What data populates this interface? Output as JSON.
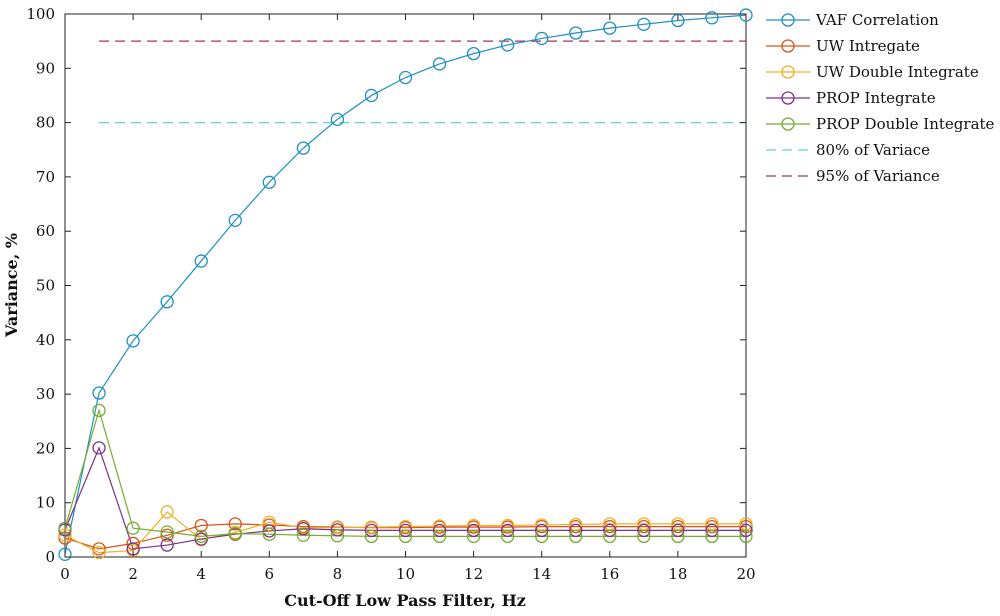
{
  "chart_data": {
    "type": "line",
    "xlabel": "Cut-Off Low Pass Filter, Hz",
    "ylabel": "Variance, %",
    "xlim": [
      0,
      20
    ],
    "ylim": [
      0,
      100
    ],
    "x_ticks": [
      "0",
      "2",
      "4",
      "6",
      "8",
      "10",
      "12",
      "14",
      "16",
      "18",
      "20"
    ],
    "y_ticks": [
      "0",
      "10",
      "20",
      "30",
      "40",
      "50",
      "60",
      "70",
      "80",
      "90",
      "100"
    ],
    "grid": false,
    "legend_position": "outside-right",
    "x": [
      0,
      1,
      2,
      3,
      4,
      5,
      6,
      7,
      8,
      9,
      10,
      11,
      12,
      13,
      14,
      15,
      16,
      17,
      18,
      19,
      20
    ],
    "series": [
      {
        "name": "VAF Correlation",
        "color": "#1f8fc4",
        "marker": "circle",
        "values": [
          0.5,
          30.2,
          39.8,
          47.0,
          54.5,
          62.0,
          69.0,
          75.3,
          80.6,
          85.0,
          88.3,
          90.8,
          92.7,
          94.3,
          95.5,
          96.5,
          97.4,
          98.1,
          98.8,
          99.3,
          99.8
        ]
      },
      {
        "name": "UW Intregate",
        "color": "#d95319",
        "marker": "circle",
        "values": [
          3.5,
          1.5,
          2.5,
          4.0,
          5.8,
          6.1,
          5.9,
          5.6,
          5.5,
          5.4,
          5.4,
          5.5,
          5.5,
          5.5,
          5.6,
          5.6,
          5.6,
          5.6,
          5.6,
          5.6,
          5.6
        ]
      },
      {
        "name": "UW Double Integrate",
        "color": "#edb120",
        "marker": "circle",
        "values": [
          4.0,
          0.8,
          1.2,
          8.3,
          3.2,
          4.5,
          6.4,
          5.4,
          5.4,
          5.5,
          5.6,
          5.7,
          5.8,
          5.8,
          5.9,
          6.0,
          6.1,
          6.1,
          6.1,
          6.1,
          6.1
        ]
      },
      {
        "name": "PROP Integrate",
        "color": "#7e2f8e",
        "marker": "circle",
        "values": [
          5.0,
          20.1,
          1.5,
          2.2,
          3.3,
          4.2,
          4.8,
          5.2,
          5.0,
          4.9,
          4.9,
          4.9,
          4.9,
          4.9,
          4.9,
          4.9,
          4.9,
          4.9,
          4.9,
          4.9,
          4.9
        ]
      },
      {
        "name": "PROP Double Integrate",
        "color": "#77ac30",
        "marker": "circle",
        "values": [
          5.3,
          27.0,
          5.3,
          4.6,
          3.8,
          4.3,
          4.2,
          4.0,
          3.9,
          3.8,
          3.8,
          3.8,
          3.8,
          3.8,
          3.8,
          3.8,
          3.8,
          3.8,
          3.8,
          3.8,
          3.8
        ]
      }
    ],
    "reference_lines": [
      {
        "name": "80% of Variace",
        "y": 80,
        "color": "#5fd3d3",
        "style": "dashed"
      },
      {
        "name": "95% of Variance",
        "y": 95,
        "color": "#a2345c",
        "style": "dashed"
      }
    ]
  }
}
